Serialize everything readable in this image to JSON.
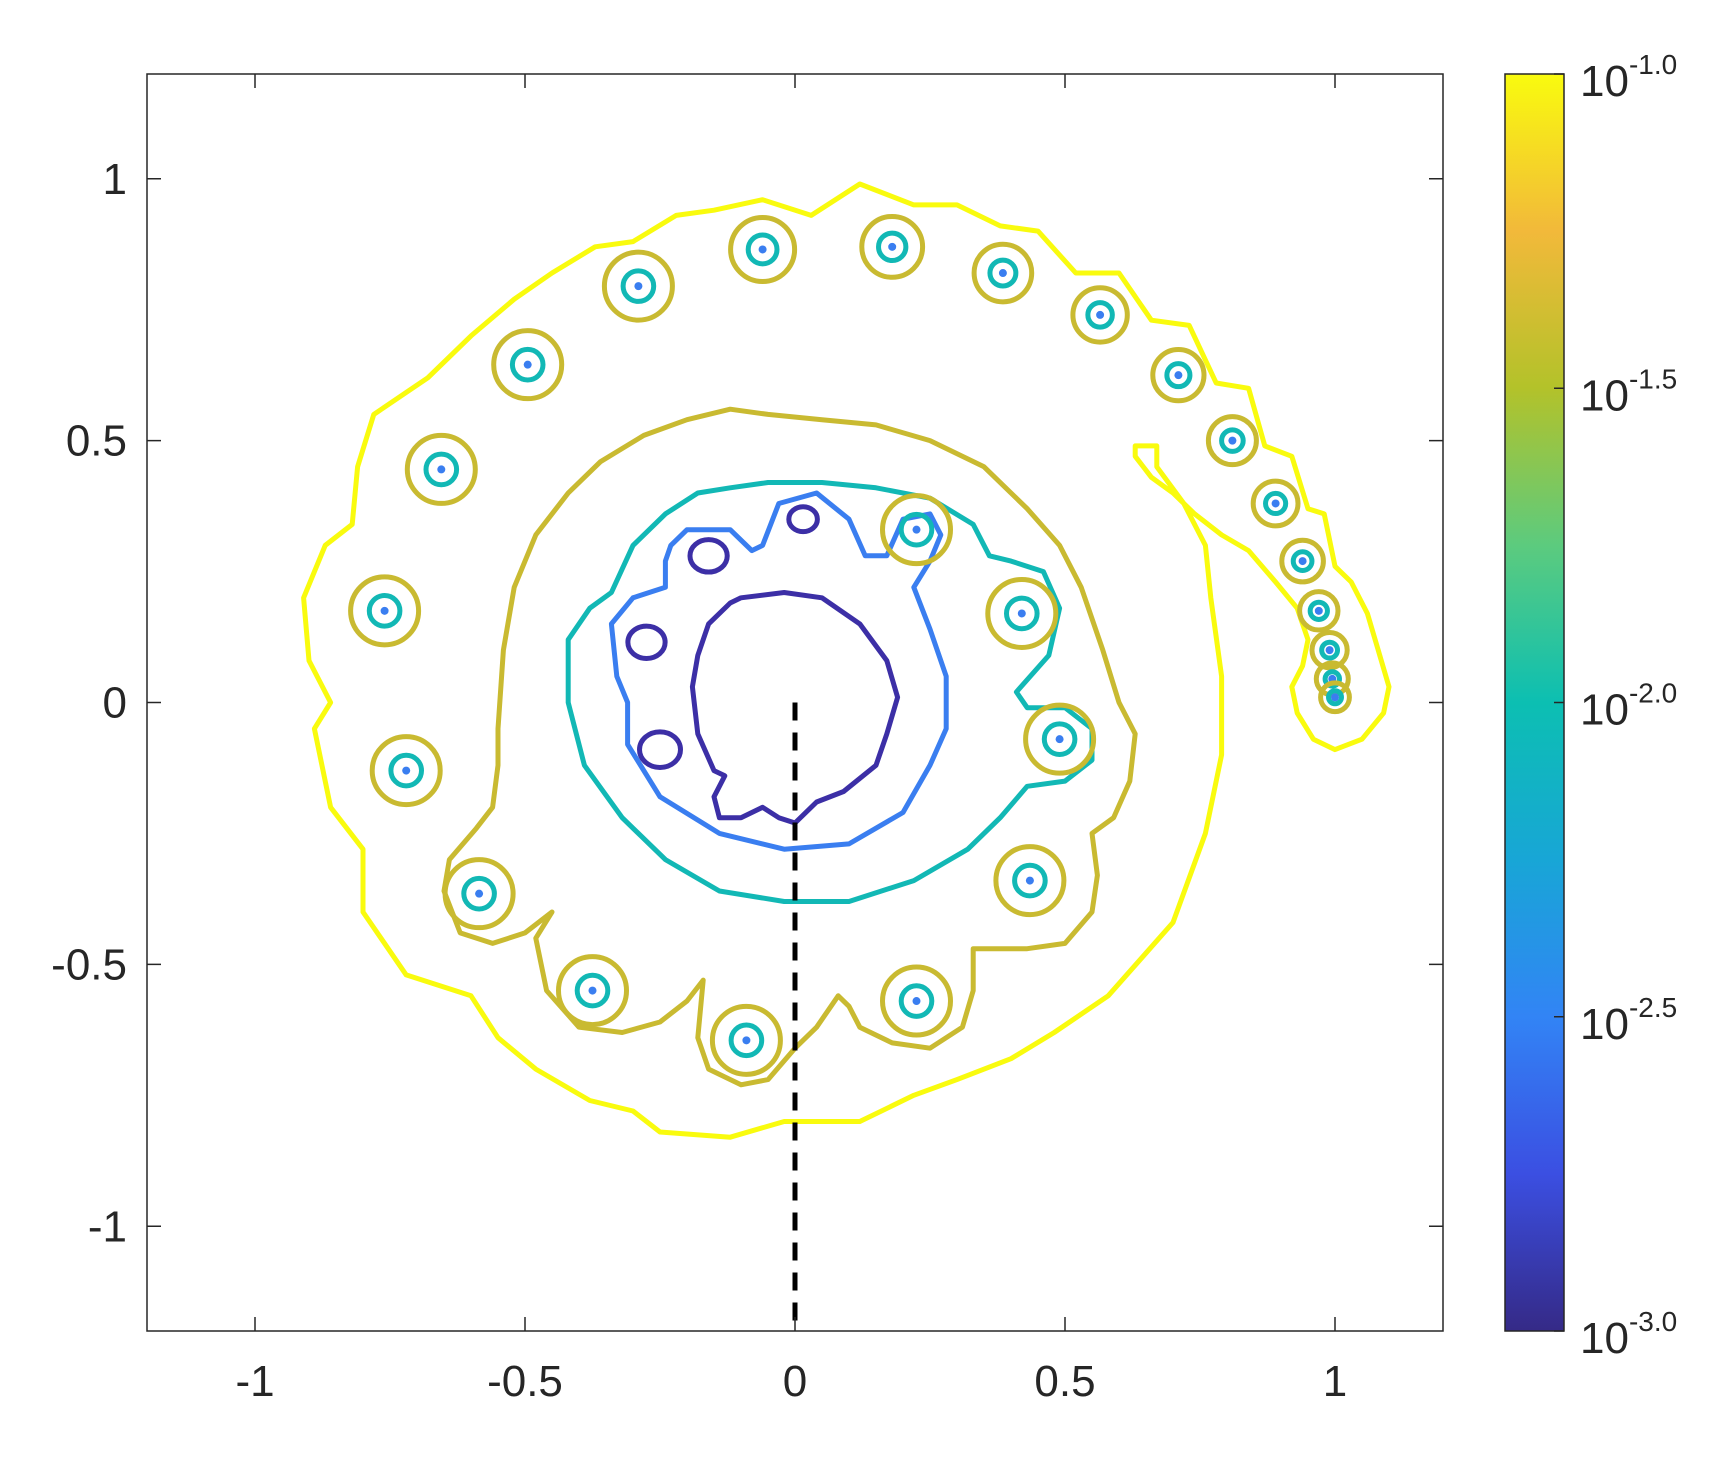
{
  "chart_data": {
    "type": "contour",
    "title": "",
    "xlabel": "",
    "ylabel": "",
    "xlim": [
      -1.2,
      1.2
    ],
    "ylim": [
      -1.2,
      1.2
    ],
    "x_ticks": [
      -1,
      -0.5,
      0,
      0.5,
      1
    ],
    "x_tick_labels": [
      "-1",
      "-0.5",
      "0",
      "0.5",
      "1"
    ],
    "y_ticks": [
      1,
      0.5,
      0,
      -0.5,
      -1
    ],
    "y_tick_labels": [
      "1",
      "0.5",
      "0",
      "-0.5",
      "-1"
    ],
    "grid": false,
    "colormap": "parula",
    "contour_levels_log10": [
      -1.0,
      -1.5,
      -2.0,
      -2.5,
      -3.0
    ],
    "level_colors": {
      "-1.0": "#f9fb0e",
      "-1.5": "#c9ba31",
      "-2.0": "#12b8b5",
      "-2.5": "#3a7ef0",
      "-3.0": "#3c2fa6"
    },
    "colorbar": {
      "scale": "log",
      "base": "10",
      "range_log10": [
        -3.0,
        -1.0
      ],
      "tick_exponents": [
        "-1.0",
        "-1.5",
        "-2.0",
        "-2.5",
        "-3.0"
      ],
      "stops": [
        "#352a87",
        "#3b4fe2",
        "#3284f5",
        "#18a6d6",
        "#0cbfb2",
        "#5ccb7e",
        "#b3c22a",
        "#f2b93a",
        "#f9fb0e"
      ]
    },
    "dashed_line": {
      "x": [
        0,
        0
      ],
      "y": [
        0,
        -1.2
      ],
      "color": "#000000",
      "style": "dashed"
    },
    "eigenvalue_points": [
      {
        "x": -0.06,
        "y": 0.865
      },
      {
        "x": 0.18,
        "y": 0.87
      },
      {
        "x": 0.385,
        "y": 0.82
      },
      {
        "x": 0.565,
        "y": 0.74
      },
      {
        "x": 0.71,
        "y": 0.625
      },
      {
        "x": 0.81,
        "y": 0.5
      },
      {
        "x": 0.89,
        "y": 0.38
      },
      {
        "x": 0.94,
        "y": 0.27
      },
      {
        "x": 0.97,
        "y": 0.175
      },
      {
        "x": 0.99,
        "y": 0.1
      },
      {
        "x": 0.995,
        "y": 0.045
      },
      {
        "x": 1.0,
        "y": 0.01
      },
      {
        "x": -0.29,
        "y": 0.795
      },
      {
        "x": -0.495,
        "y": 0.645
      },
      {
        "x": -0.655,
        "y": 0.445
      },
      {
        "x": -0.76,
        "y": 0.175
      },
      {
        "x": -0.72,
        "y": -0.13
      },
      {
        "x": -0.585,
        "y": -0.365
      },
      {
        "x": -0.375,
        "y": -0.55
      },
      {
        "x": -0.09,
        "y": -0.645
      },
      {
        "x": 0.225,
        "y": -0.57
      },
      {
        "x": 0.435,
        "y": -0.34
      },
      {
        "x": 0.49,
        "y": -0.07
      },
      {
        "x": 0.42,
        "y": 0.17
      },
      {
        "x": 0.225,
        "y": 0.33
      }
    ],
    "small_contour_rings": [
      {
        "x": 0.0,
        "y": -0.03,
        "level": "-3.0",
        "r": 0.0
      },
      {
        "x": -0.16,
        "y": 0.28,
        "level": "-3.0",
        "r": 0.03
      },
      {
        "x": 0.015,
        "y": 0.35,
        "level": "-3.0",
        "r": 0.023
      },
      {
        "x": -0.275,
        "y": 0.115,
        "level": "-3.0",
        "r": 0.03
      },
      {
        "x": -0.25,
        "y": -0.09,
        "level": "-3.0",
        "r": 0.033
      }
    ]
  }
}
